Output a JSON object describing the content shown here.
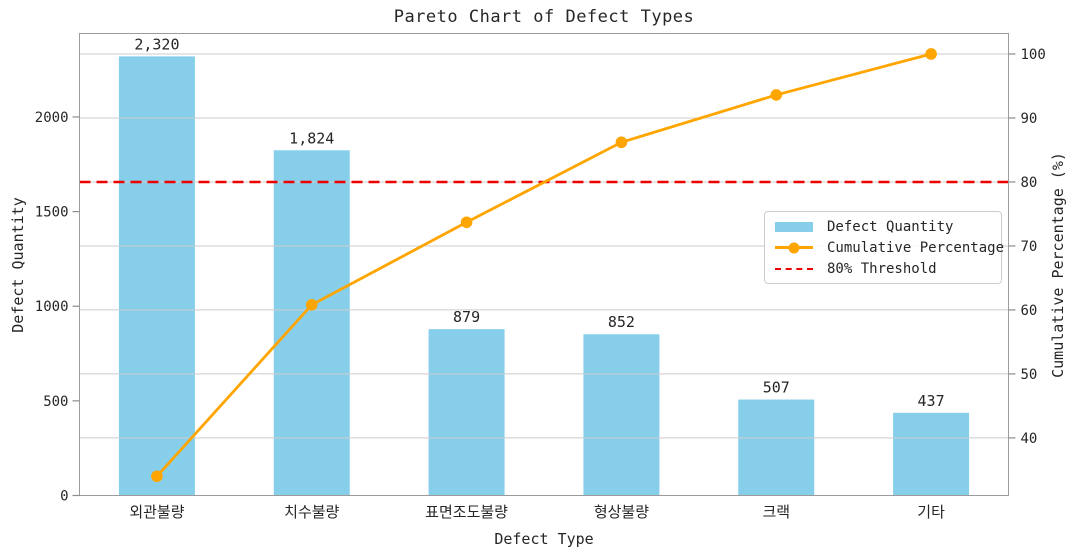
{
  "chart_data": {
    "type": "bar",
    "subtype": "pareto-combo (bars + cumulative line + threshold)",
    "title": "Pareto Chart of Defect Types",
    "xlabel": "Defect Type",
    "ylabel_left": "Defect Quantity",
    "ylabel_right": "Cumulative Percentage (%)",
    "categories": [
      "외관불량",
      "치수불량",
      "표면조도불량",
      "형상불량",
      "크랙",
      "기타"
    ],
    "series": [
      {
        "name": "Defect Quantity",
        "chart": "bar",
        "axis": "left",
        "color": "#87CEEB",
        "values": [
          2320,
          1824,
          879,
          852,
          507,
          437
        ],
        "value_labels": [
          "2,320",
          "1,824",
          "879",
          "852",
          "507",
          "437"
        ]
      },
      {
        "name": "Cumulative Percentage",
        "chart": "line",
        "axis": "right",
        "color": "#FFA500",
        "marker": "circle",
        "values": [
          34.0,
          60.8,
          73.7,
          86.2,
          93.6,
          100.0
        ]
      },
      {
        "name": "80% Threshold",
        "chart": "hline",
        "axis": "right",
        "color": "#EE0000",
        "linestyle": "dashed",
        "value": 80
      }
    ],
    "axis_left": {
      "ticks": [
        0,
        500,
        1000,
        1500,
        2000
      ],
      "lim": [
        0,
        2441
      ]
    },
    "axis_right": {
      "ticks": [
        40,
        50,
        60,
        70,
        80,
        90,
        100
      ],
      "lim": [
        31.0,
        103.2
      ]
    },
    "grid": {
      "horizontal_on_right_ticks": true,
      "color": "#CCCCCC"
    },
    "legend_position": "center right"
  },
  "legend": {
    "items": [
      {
        "label": "Defect Quantity",
        "swatch": "bar",
        "color": "#87CEEB"
      },
      {
        "label": "Cumulative Percentage",
        "swatch": "line-marker",
        "color": "#FFA500"
      },
      {
        "label": "80% Threshold",
        "swatch": "dashed-line",
        "color": "#EE0000"
      }
    ]
  },
  "style": {
    "background": "#FFFFFF",
    "text_color": "#262626",
    "spine_color": "#9B9B9B",
    "grid_color": "#CCCCCC"
  }
}
